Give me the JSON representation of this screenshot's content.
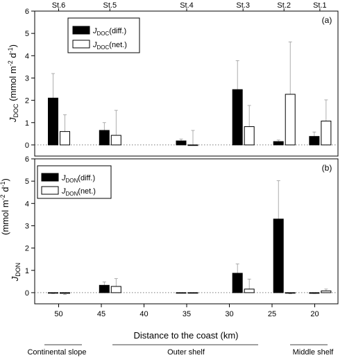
{
  "chart_data": [
    {
      "panel": "(a)",
      "type": "bar",
      "ylabel": "J_DOC (mmol m-2 d-1)",
      "ylim": [
        -0.5,
        6
      ],
      "yticks": [
        0,
        1,
        2,
        3,
        4,
        5,
        6
      ],
      "series": [
        {
          "name": "J_DOC(diff.)",
          "fill": "#000000",
          "values": [
            2.1,
            0.65,
            0.18,
            2.48,
            0.15,
            0.38
          ],
          "errors": [
            1.1,
            0.35,
            0.08,
            1.3,
            0.07,
            0.2
          ]
        },
        {
          "name": "J_DOC(net.)",
          "fill": "#ffffff",
          "values": [
            0.6,
            0.43,
            0.0,
            0.82,
            2.27,
            1.07
          ],
          "errors": [
            0.75,
            1.12,
            0.65,
            0.95,
            2.35,
            0.95
          ]
        }
      ]
    },
    {
      "panel": "(b)",
      "type": "bar",
      "ylabel": "J_DON (mmol m-2 d-1)",
      "ylim": [
        -0.5,
        6
      ],
      "yticks": [
        0,
        1,
        2,
        3,
        4,
        5,
        6
      ],
      "series": [
        {
          "name": "J_DON(diff.)",
          "fill": "#000000",
          "values": [
            -0.02,
            0.33,
            -0.01,
            0.87,
            3.3,
            -0.03
          ],
          "errors": [
            0.02,
            0.15,
            0.01,
            0.42,
            1.72,
            0.01
          ]
        },
        {
          "name": "J_DON(net.)",
          "fill": "#ffffff",
          "values": [
            -0.03,
            0.28,
            0.0,
            0.16,
            -0.02,
            0.08
          ],
          "errors": [
            0.05,
            0.35,
            0.0,
            0.45,
            0.03,
            0.08
          ]
        }
      ]
    }
  ],
  "stations": [
    {
      "label": "St.6",
      "km": 50
    },
    {
      "label": "St.5",
      "km": 44
    },
    {
      "label": "St.4",
      "km": 35
    },
    {
      "label": "St.3",
      "km": 28.4
    },
    {
      "label": "St.2",
      "km": 23.6
    },
    {
      "label": "St.1",
      "km": 19.4
    }
  ],
  "xaxis": {
    "title": "Distance to the coast (km)",
    "tick_labels": [
      "50",
      "45",
      "40",
      "35",
      "30",
      "25",
      "20"
    ]
  },
  "legends": {
    "a": {
      "diff_base": "J",
      "diff_sub": "DOC",
      "diff_suffix": "(diff.)",
      "net_base": "J",
      "net_sub": "DOC",
      "net_suffix": "(net.)"
    },
    "b": {
      "diff_base": "J",
      "diff_sub": "DON",
      "diff_suffix": "(diff.)",
      "net_base": "J",
      "net_sub": "DON",
      "net_suffix": "(net.)"
    }
  },
  "ylabels": {
    "a": {
      "base": "J",
      "sub": "DOC",
      "units": " (mmol m",
      "exp1": "-2",
      "mid": " d",
      "exp2": "-1",
      "close": ")"
    },
    "b": {
      "base": "J",
      "sub": "DON",
      "units": "(mmol m",
      "exp1": "-2",
      "mid": " d",
      "exp2": "-1",
      "close": ")"
    }
  },
  "regions": [
    "Continental slope",
    "Outer shelf",
    "Middle shelf"
  ],
  "colors": {
    "diff_bar": "#000000",
    "net_bar": "#ffffff",
    "error_bar": "#9a9a9a",
    "zero_line": "#7a7a7a"
  }
}
